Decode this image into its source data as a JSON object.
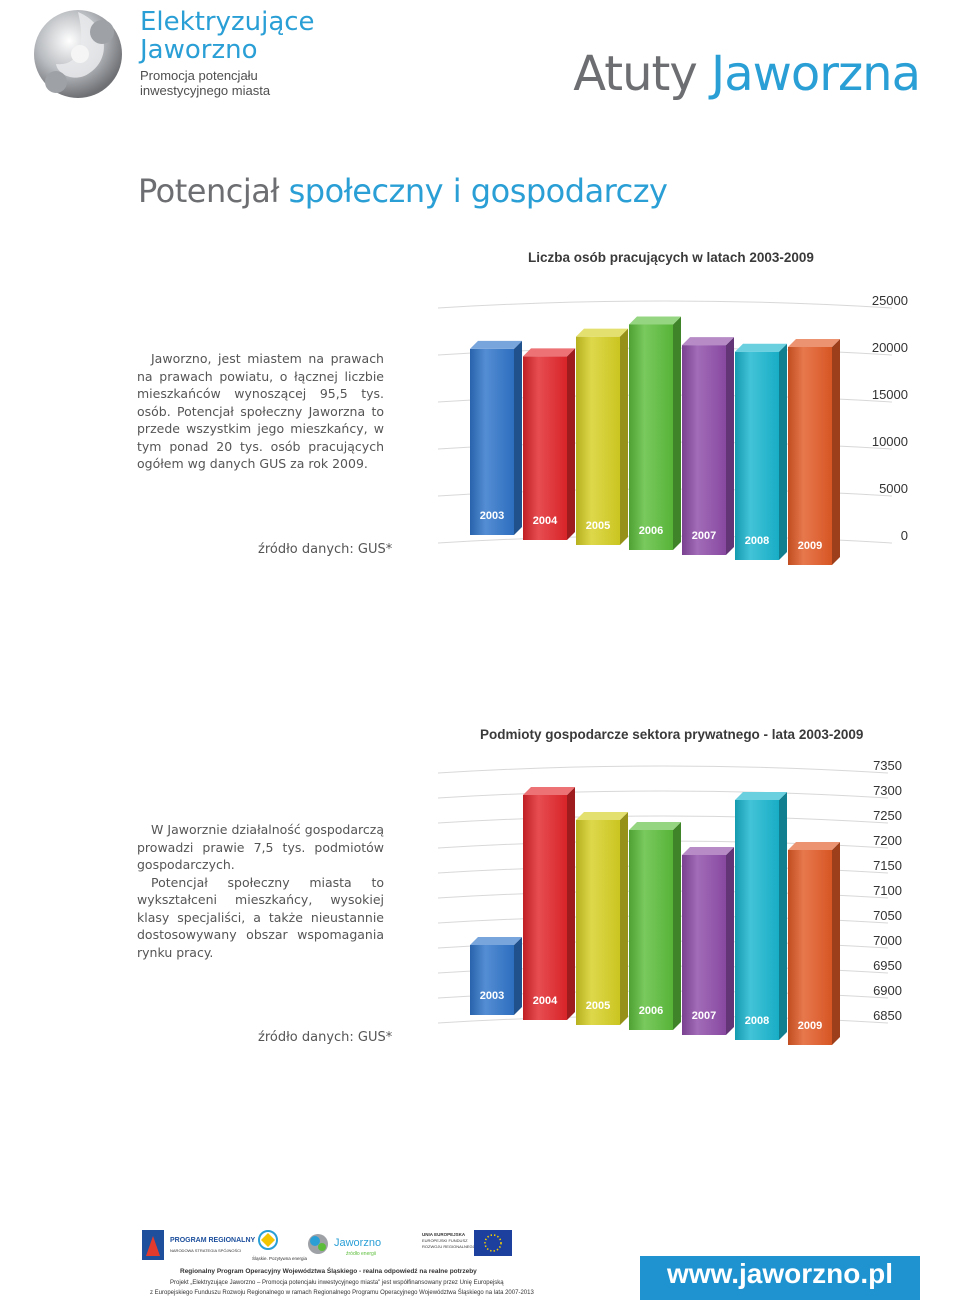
{
  "header": {
    "brand_line1": "Elektryzujące",
    "brand_line2": "Jaworzno",
    "tagline_line1": "Promocja potencjału",
    "tagline_line2": "inwestycyjnego miasta",
    "title_part1": "Atuty",
    "title_part2": "Jaworzna"
  },
  "section": {
    "heading_part1": "Potencjał",
    "heading_part2": "społeczny i gospodarczy"
  },
  "block1": {
    "text": "Jaworzno, jest miastem na prawach na prawach powiatu, o łącznej liczbie mieszkańców wynoszącej 95,5 tys. osób. Potencjał społeczny Jaworzna to przede wszystkim jego mieszkańcy, w tym ponad 20 tys. osób pracujących ogółem wg danych GUS za rok 2009.",
    "source": "źródło danych: GUS*"
  },
  "block2": {
    "text1": "W Jaworznie działalność gospodarczą prowadzi prawie 7,5 tys. podmiotów gospodarczych.",
    "text2": "Potencjał społeczny miasta to wykształceni mieszkańcy, wysokiej klasy specjaliści, a także nieustannie dostosowywany obszar wspomagania rynku pracy.",
    "source": "źródło danych: GUS*"
  },
  "chart_data": [
    {
      "type": "bar",
      "title": "Liczba osób pracujących w latach 2003-2009",
      "categories": [
        "2003",
        "2004",
        "2005",
        "2006",
        "2007",
        "2008",
        "2009"
      ],
      "values": [
        19800,
        19000,
        21100,
        22400,
        20200,
        19500,
        20000
      ],
      "ylim": [
        0,
        25000
      ],
      "yticks": [
        "25000",
        "20000",
        "15000",
        "10000",
        "5000",
        "0"
      ],
      "colors": [
        "#2f74c9",
        "#e2262b",
        "#d6cf23",
        "#5cbd3b",
        "#8e4ca8",
        "#19b6cf",
        "#e25a26"
      ],
      "grid": true
    },
    {
      "type": "bar",
      "title": "Podmioty gospodarcze sektora prywatnego - lata 2003-2009",
      "categories": [
        "2003",
        "2004",
        "2005",
        "2006",
        "2007",
        "2008",
        "2009"
      ],
      "values": [
        6990,
        7290,
        7240,
        7220,
        7170,
        7280,
        7180
      ],
      "ylim": [
        6850,
        7350
      ],
      "yticks": [
        "7350",
        "7300",
        "7250",
        "7200",
        "7150",
        "7100",
        "7050",
        "7000",
        "6950",
        "6900",
        "6850"
      ],
      "colors": [
        "#2f74c9",
        "#e2262b",
        "#d6cf23",
        "#5cbd3b",
        "#8e4ca8",
        "#19b6cf",
        "#e25a26"
      ],
      "grid": true
    }
  ],
  "footer": {
    "logo1": "PROGRAM REGIONALNY",
    "logo1_sub": "NARODOWA STRATEGIA SPÓJNOŚCI",
    "logo2": "Śląskie. Pozytywna energia",
    "logo3": "Jaworzno",
    "logo3_sub": "źródło energii",
    "logo4_line1": "UNIA EUROPEJSKA",
    "logo4_line2": "EUROPEJSKI FUNDUSZ",
    "logo4_line3": "ROZWOJU REGIONALNEGO",
    "line1": "Regionalny Program Operacyjny Województwa Śląskiego - realna odpowiedź na realne potrzeby",
    "line2": "Projekt „Elektryzujące Jaworzno – Promocja potencjału inwestycyjnego miasta\" jest współfinansowany przez Unię Europejską",
    "line3": "z Europejskiego Funduszu Rozwoju Regionalnego w ramach Regionalnego Programu Operacyjnego Województwa Śląskiego na lata 2007-2013",
    "url": "www.jaworzno.pl"
  }
}
